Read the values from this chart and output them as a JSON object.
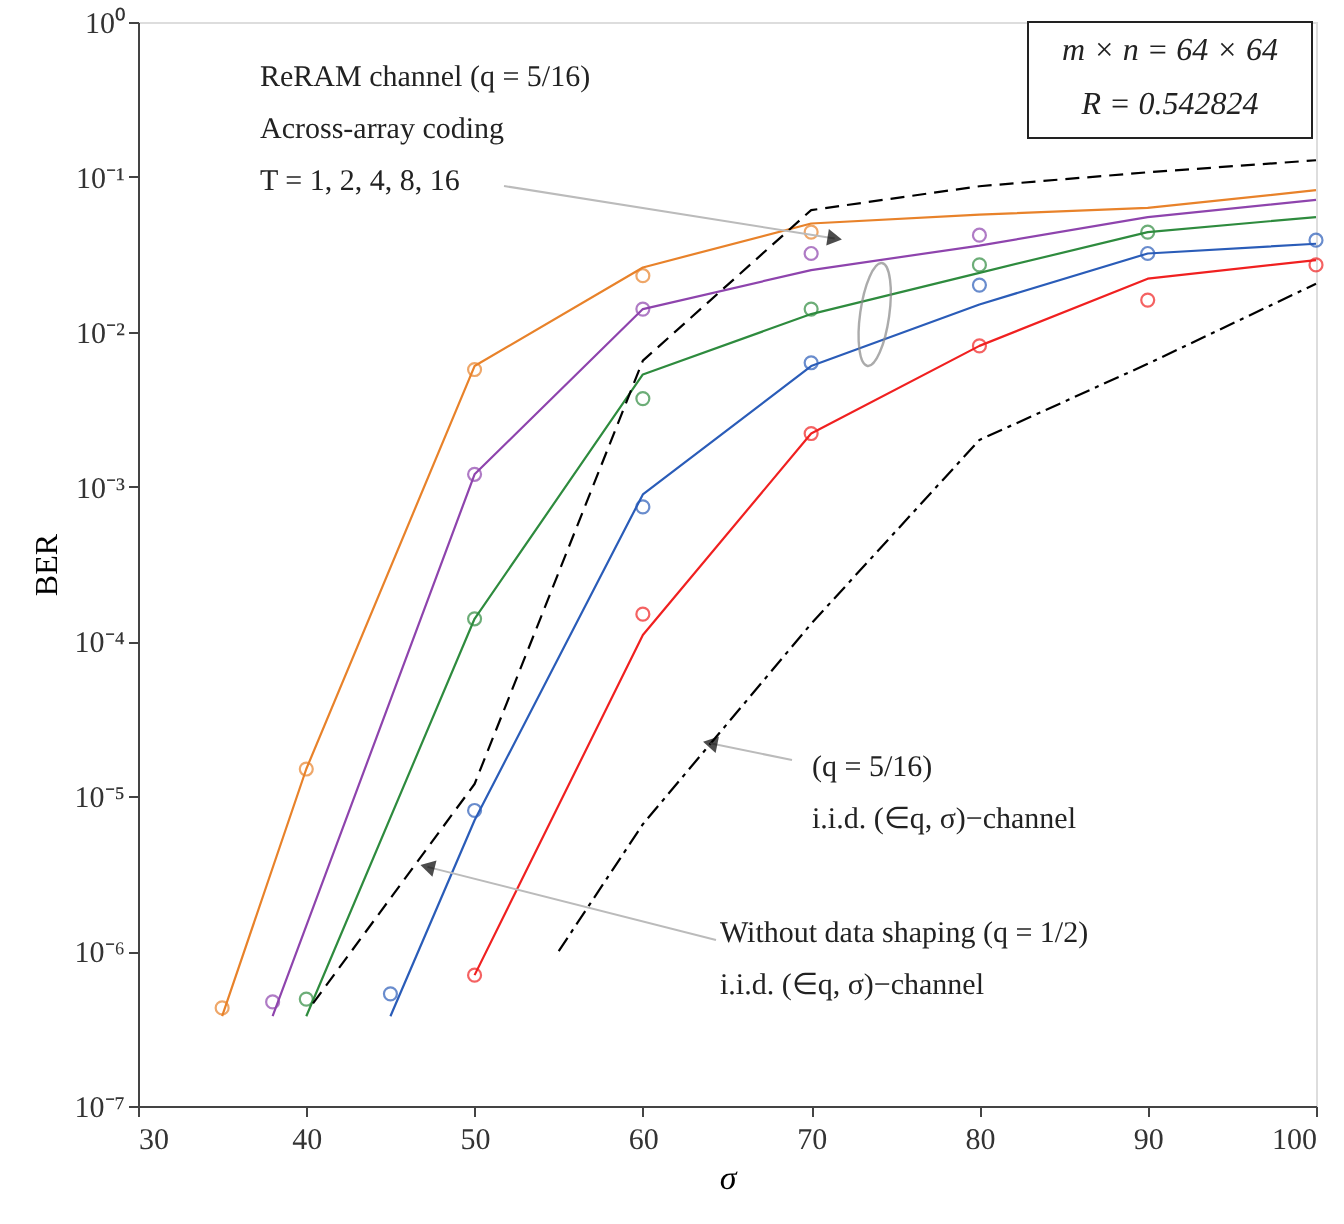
{
  "chart_data": {
    "type": "line",
    "xlabel": "σ",
    "ylabel": "BER",
    "xlim": [
      30,
      100
    ],
    "xticks": [
      30,
      40,
      50,
      60,
      70,
      80,
      90,
      100
    ],
    "ylim": [
      1e-07,
      1
    ],
    "yticks": [
      {
        "value": 1e-07,
        "label": "10⁻⁷"
      },
      {
        "value": 1e-06,
        "label": "10⁻⁶"
      },
      {
        "value": 1e-05,
        "label": "10⁻⁵"
      },
      {
        "value": 0.0001,
        "label": "10⁻⁴"
      },
      {
        "value": 0.001,
        "label": "10⁻³"
      },
      {
        "value": 0.01,
        "label": "10⁻²"
      },
      {
        "value": 0.1,
        "label": "10⁻¹"
      },
      {
        "value": 1,
        "label": "10⁰"
      }
    ],
    "log": "y",
    "grid": false,
    "line_style": "solid",
    "series": [
      {
        "color": "#e8822a",
        "x": [
          35,
          40,
          50,
          60,
          70,
          80,
          90,
          100
        ],
        "values": [
          3.8e-07,
          1.5e-05,
          0.006,
          0.026,
          0.05,
          0.057,
          0.063,
          0.082
        ]
      },
      {
        "type": "scatter",
        "marker": "circle",
        "color": "#e8822a",
        "x": [
          35,
          40,
          50,
          60,
          70
        ],
        "values": [
          4.3e-07,
          1.5e-05,
          0.0057,
          0.023,
          0.044
        ]
      },
      {
        "color": "#8e44ad",
        "x": [
          38,
          50,
          60,
          70,
          80,
          90,
          100
        ],
        "values": [
          3.8e-07,
          0.0012,
          0.014,
          0.025,
          0.036,
          0.055,
          0.071
        ]
      },
      {
        "type": "scatter",
        "marker": "circle",
        "color": "#8e44ad",
        "x": [
          38,
          50,
          60,
          70,
          80
        ],
        "values": [
          4.7e-07,
          0.0012,
          0.014,
          0.032,
          0.042
        ]
      },
      {
        "color": "#2e8b3e",
        "x": [
          40,
          50,
          60,
          70,
          80,
          90,
          100
        ],
        "values": [
          3.8e-07,
          0.00014,
          0.0053,
          0.013,
          0.024,
          0.044,
          0.055
        ]
      },
      {
        "type": "scatter",
        "marker": "circle",
        "color": "#2e8b3e",
        "x": [
          40,
          50,
          60,
          70,
          80,
          90
        ],
        "values": [
          4.9e-07,
          0.00014,
          0.0037,
          0.014,
          0.027,
          0.044
        ]
      },
      {
        "color": "#2a5cb8",
        "x": [
          45,
          50,
          60,
          70,
          80,
          90,
          100
        ],
        "values": [
          3.8e-07,
          7e-06,
          0.00089,
          0.006,
          0.015,
          0.032,
          0.037
        ]
      },
      {
        "type": "scatter",
        "marker": "circle",
        "color": "#2a5cb8",
        "x": [
          45,
          50,
          60,
          70,
          80,
          90,
          100
        ],
        "values": [
          5.3e-07,
          8.1e-06,
          0.00074,
          0.0063,
          0.02,
          0.032,
          0.039
        ]
      },
      {
        "color": "#f02020",
        "x": [
          50,
          60,
          70,
          80,
          90,
          100
        ],
        "values": [
          7e-07,
          0.00011,
          0.0022,
          0.0081,
          0.022,
          0.029
        ]
      },
      {
        "type": "scatter",
        "marker": "circle",
        "color": "#f02020",
        "x": [
          50,
          60,
          70,
          80,
          90,
          100
        ],
        "values": [
          7e-07,
          0.00015,
          0.0022,
          0.0081,
          0.016,
          0.027
        ]
      },
      {
        "line_style": "dashed",
        "color": "#000000",
        "x": [
          40.4,
          50,
          60,
          70,
          80,
          90,
          100
        ],
        "values": [
          4.6e-07,
          1.2e-05,
          0.0065,
          0.061,
          0.087,
          0.107,
          0.128
        ]
      },
      {
        "line_style": "dashdot",
        "color": "#000000",
        "x": [
          55,
          60,
          70,
          80,
          90,
          100
        ],
        "values": [
          1e-06,
          6.6e-06,
          0.00013,
          0.002,
          0.0062,
          0.0204
        ]
      }
    ],
    "annotations": [
      {
        "text": "ReRAM channel (q = 5/16)\nAcross-array coding\nT = 1, 2, 4, 8, 16",
        "x": 71.4,
        "y": 0.04
      },
      {
        "text": "(q = 5/16)\ni.i.d. (∈q, σ)−channel",
        "x": 64.0,
        "y": 2.2e-05
      },
      {
        "text": "Without data shaping (q = 1/2)\ni.i.d. (∈q, σ)−channel",
        "x": 47.2,
        "y": 3.5e-06
      },
      "m × n = 64 × 64\nR = 0.542824"
    ]
  }
}
